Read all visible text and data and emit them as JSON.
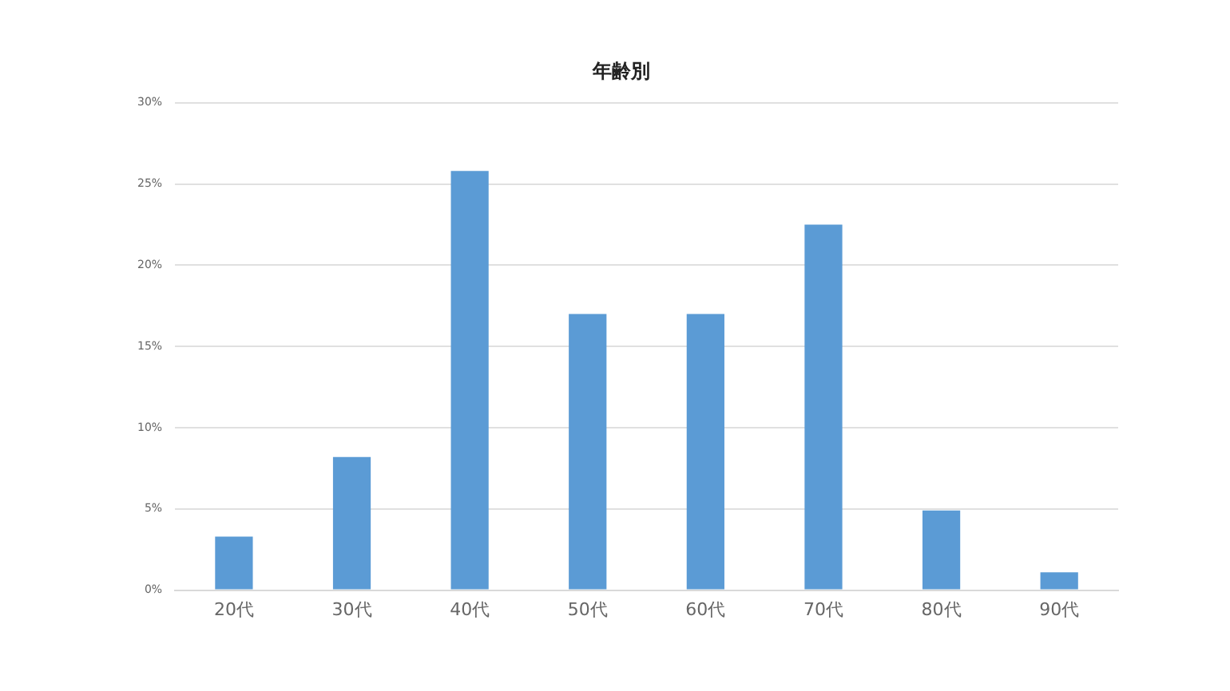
{
  "chart_data": {
    "type": "bar",
    "title": "年齢別",
    "categories": [
      "20代",
      "30代",
      "40代",
      "50代",
      "60代",
      "70代",
      "80代",
      "90代"
    ],
    "values": [
      3.3,
      8.2,
      25.8,
      17.0,
      17.0,
      22.5,
      4.9,
      1.1
    ],
    "color": "#5b9bd5",
    "ylim": [
      0,
      30
    ],
    "yticks": [
      {
        "value": 0,
        "label": "0%"
      },
      {
        "value": 5,
        "label": "5%"
      },
      {
        "value": 10,
        "label": "10%"
      },
      {
        "value": 15,
        "label": "15%"
      },
      {
        "value": 20,
        "label": "20%"
      },
      {
        "value": 25,
        "label": "25%"
      },
      {
        "value": 30,
        "label": "30%"
      }
    ],
    "grid": "y"
  }
}
